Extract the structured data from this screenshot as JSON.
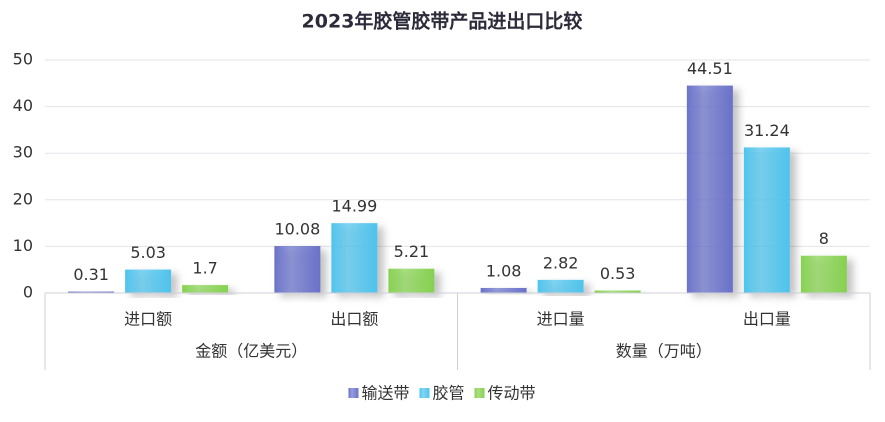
{
  "chart_data": {
    "type": "bar",
    "title": "2023年胶管胶带产品进出口比较",
    "groups": [
      {
        "name": "金额（亿美元）",
        "categories": [
          "进口额",
          "出口额"
        ]
      },
      {
        "name": "数量（万吨）",
        "categories": [
          "进口量",
          "出口量"
        ]
      }
    ],
    "series": [
      {
        "name": "输送带",
        "color": "#6a72c9",
        "values": [
          0.31,
          10.08,
          1.08,
          44.51
        ]
      },
      {
        "name": "胶管",
        "color": "#4fc3ec",
        "values": [
          5.03,
          14.99,
          2.82,
          31.24
        ]
      },
      {
        "name": "传动带",
        "color": "#86d150",
        "values": [
          1.7,
          5.21,
          0.53,
          8
        ]
      }
    ],
    "ylim": [
      0,
      50
    ],
    "yticks": [
      0,
      10,
      20,
      30,
      40,
      50
    ],
    "grid": true,
    "legend": "bottom"
  }
}
